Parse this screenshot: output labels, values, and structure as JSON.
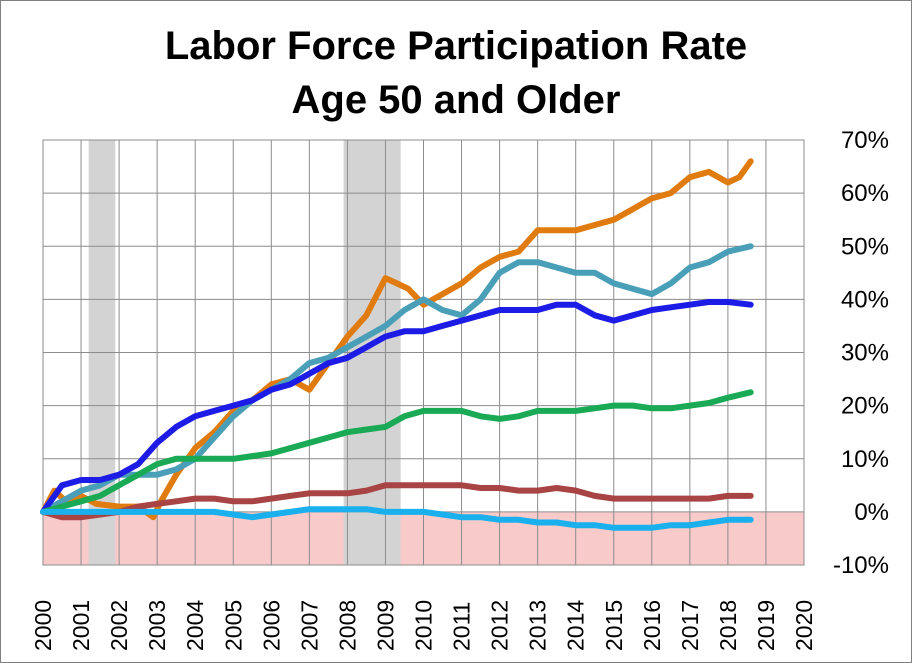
{
  "chart_data": {
    "type": "line",
    "title": "Labor Force Participation Rate",
    "subtitle": "Age 50 and Older",
    "xlabel": "",
    "ylabel": "",
    "xlim": [
      2000,
      2020
    ],
    "ylim": [
      -10,
      70
    ],
    "x_ticks": [
      "2000",
      "2001",
      "2002",
      "2003",
      "2004",
      "2005",
      "2006",
      "2007",
      "2008",
      "2009",
      "2010",
      "2011",
      "2012",
      "2013",
      "2014",
      "2015",
      "2016",
      "2017",
      "2018",
      "2019",
      "2020"
    ],
    "y_ticks": [
      "-10%",
      "0%",
      "10%",
      "20%",
      "30%",
      "40%",
      "50%",
      "60%",
      "70%"
    ],
    "y_tick_values": [
      -10,
      0,
      10,
      20,
      30,
      40,
      50,
      60,
      70
    ],
    "grid": true,
    "y_axis_side": "right",
    "negative_region_color": "#f9caca",
    "recessions": [
      {
        "start": 2001.2,
        "end": 2001.9
      },
      {
        "start": 2007.9,
        "end": 2009.4
      }
    ],
    "recession_color": "#d3d3d3",
    "series": [
      {
        "color": "#e07b10",
        "points": [
          [
            2000,
            0
          ],
          [
            2000.3,
            4
          ],
          [
            2000.6,
            2
          ],
          [
            2001,
            3
          ],
          [
            2001.4,
            1.5
          ],
          [
            2002,
            1
          ],
          [
            2002.5,
            1
          ],
          [
            2002.9,
            -1
          ],
          [
            2003.1,
            2
          ],
          [
            2003.5,
            7
          ],
          [
            2004,
            12
          ],
          [
            2004.5,
            15
          ],
          [
            2005,
            19
          ],
          [
            2005.5,
            21
          ],
          [
            2006,
            24
          ],
          [
            2006.5,
            25
          ],
          [
            2007,
            23
          ],
          [
            2007.5,
            28
          ],
          [
            2008,
            33
          ],
          [
            2008.5,
            37
          ],
          [
            2009,
            44
          ],
          [
            2009.3,
            43
          ],
          [
            2009.6,
            42
          ],
          [
            2010,
            39
          ],
          [
            2010.5,
            41
          ],
          [
            2011,
            43
          ],
          [
            2011.5,
            46
          ],
          [
            2012,
            48
          ],
          [
            2012.5,
            49
          ],
          [
            2013,
            53
          ],
          [
            2013.5,
            53
          ],
          [
            2014,
            53
          ],
          [
            2014.5,
            54
          ],
          [
            2015,
            55
          ],
          [
            2015.5,
            57
          ],
          [
            2016,
            59
          ],
          [
            2016.5,
            60
          ],
          [
            2017,
            63
          ],
          [
            2017.5,
            64
          ],
          [
            2018,
            62
          ],
          [
            2018.3,
            63
          ],
          [
            2018.6,
            66
          ]
        ]
      },
      {
        "color": "#4a9fb8",
        "points": [
          [
            2000,
            0
          ],
          [
            2000.5,
            2
          ],
          [
            2001,
            4
          ],
          [
            2001.5,
            5
          ],
          [
            2002,
            7
          ],
          [
            2002.5,
            7
          ],
          [
            2003,
            7
          ],
          [
            2003.5,
            8
          ],
          [
            2004,
            10
          ],
          [
            2004.5,
            14
          ],
          [
            2005,
            18
          ],
          [
            2005.5,
            21
          ],
          [
            2006,
            23
          ],
          [
            2006.5,
            25
          ],
          [
            2007,
            28
          ],
          [
            2007.5,
            29
          ],
          [
            2008,
            31
          ],
          [
            2008.5,
            33
          ],
          [
            2009,
            35
          ],
          [
            2009.5,
            38
          ],
          [
            2010,
            40
          ],
          [
            2010.5,
            38
          ],
          [
            2011,
            37
          ],
          [
            2011.5,
            40
          ],
          [
            2012,
            45
          ],
          [
            2012.5,
            47
          ],
          [
            2013,
            47
          ],
          [
            2013.5,
            46
          ],
          [
            2014,
            45
          ],
          [
            2014.5,
            45
          ],
          [
            2015,
            43
          ],
          [
            2015.5,
            42
          ],
          [
            2016,
            41
          ],
          [
            2016.5,
            43
          ],
          [
            2017,
            46
          ],
          [
            2017.5,
            47
          ],
          [
            2018,
            49
          ],
          [
            2018.6,
            50
          ]
        ]
      },
      {
        "color": "#1c1ce6",
        "points": [
          [
            2000,
            0
          ],
          [
            2000.5,
            5
          ],
          [
            2001,
            6
          ],
          [
            2001.5,
            6
          ],
          [
            2002,
            7
          ],
          [
            2002.5,
            9
          ],
          [
            2003,
            13
          ],
          [
            2003.5,
            16
          ],
          [
            2004,
            18
          ],
          [
            2004.5,
            19
          ],
          [
            2005,
            20
          ],
          [
            2005.5,
            21
          ],
          [
            2006,
            23
          ],
          [
            2006.5,
            24
          ],
          [
            2007,
            26
          ],
          [
            2007.5,
            28
          ],
          [
            2008,
            29
          ],
          [
            2008.5,
            31
          ],
          [
            2009,
            33
          ],
          [
            2009.5,
            34
          ],
          [
            2010,
            34
          ],
          [
            2010.5,
            35
          ],
          [
            2011,
            36
          ],
          [
            2011.5,
            37
          ],
          [
            2012,
            38
          ],
          [
            2012.5,
            38
          ],
          [
            2013,
            38
          ],
          [
            2013.5,
            39
          ],
          [
            2014,
            39
          ],
          [
            2014.5,
            37
          ],
          [
            2015,
            36
          ],
          [
            2015.5,
            37
          ],
          [
            2016,
            38
          ],
          [
            2016.5,
            38.5
          ],
          [
            2017,
            39
          ],
          [
            2017.5,
            39.5
          ],
          [
            2018,
            39.5
          ],
          [
            2018.6,
            39
          ]
        ]
      },
      {
        "color": "#1aaa55",
        "points": [
          [
            2000,
            0
          ],
          [
            2000.5,
            1
          ],
          [
            2001,
            2
          ],
          [
            2001.5,
            3
          ],
          [
            2002,
            5
          ],
          [
            2002.5,
            7
          ],
          [
            2003,
            9
          ],
          [
            2003.5,
            10
          ],
          [
            2004,
            10
          ],
          [
            2004.5,
            10
          ],
          [
            2005,
            10
          ],
          [
            2005.5,
            10.5
          ],
          [
            2006,
            11
          ],
          [
            2006.5,
            12
          ],
          [
            2007,
            13
          ],
          [
            2007.5,
            14
          ],
          [
            2008,
            15
          ],
          [
            2008.5,
            15.5
          ],
          [
            2009,
            16
          ],
          [
            2009.5,
            18
          ],
          [
            2010,
            19
          ],
          [
            2010.5,
            19
          ],
          [
            2011,
            19
          ],
          [
            2011.5,
            18
          ],
          [
            2012,
            17.5
          ],
          [
            2012.5,
            18
          ],
          [
            2013,
            19
          ],
          [
            2013.5,
            19
          ],
          [
            2014,
            19
          ],
          [
            2014.5,
            19.5
          ],
          [
            2015,
            20
          ],
          [
            2015.5,
            20
          ],
          [
            2016,
            19.5
          ],
          [
            2016.5,
            19.5
          ],
          [
            2017,
            20
          ],
          [
            2017.5,
            20.5
          ],
          [
            2018,
            21.5
          ],
          [
            2018.6,
            22.5
          ]
        ]
      },
      {
        "color": "#a84444",
        "points": [
          [
            2000,
            0
          ],
          [
            2000.5,
            -1
          ],
          [
            2001,
            -1
          ],
          [
            2001.5,
            -0.5
          ],
          [
            2002,
            0
          ],
          [
            2002.5,
            1
          ],
          [
            2003,
            1.5
          ],
          [
            2003.5,
            2
          ],
          [
            2004,
            2.5
          ],
          [
            2004.5,
            2.5
          ],
          [
            2005,
            2
          ],
          [
            2005.5,
            2
          ],
          [
            2006,
            2.5
          ],
          [
            2006.5,
            3
          ],
          [
            2007,
            3.5
          ],
          [
            2007.5,
            3.5
          ],
          [
            2008,
            3.5
          ],
          [
            2008.5,
            4
          ],
          [
            2009,
            5
          ],
          [
            2009.5,
            5
          ],
          [
            2010,
            5
          ],
          [
            2010.5,
            5
          ],
          [
            2011,
            5
          ],
          [
            2011.5,
            4.5
          ],
          [
            2012,
            4.5
          ],
          [
            2012.5,
            4
          ],
          [
            2013,
            4
          ],
          [
            2013.5,
            4.5
          ],
          [
            2014,
            4
          ],
          [
            2014.5,
            3
          ],
          [
            2015,
            2.5
          ],
          [
            2015.5,
            2.5
          ],
          [
            2016,
            2.5
          ],
          [
            2016.5,
            2.5
          ],
          [
            2017,
            2.5
          ],
          [
            2017.5,
            2.5
          ],
          [
            2018,
            3
          ],
          [
            2018.6,
            3
          ]
        ]
      },
      {
        "color": "#1ab0ee",
        "points": [
          [
            2000,
            0
          ],
          [
            2000.5,
            0
          ],
          [
            2001,
            0
          ],
          [
            2001.5,
            0
          ],
          [
            2002,
            0
          ],
          [
            2002.5,
            0
          ],
          [
            2003,
            0
          ],
          [
            2003.5,
            0
          ],
          [
            2004,
            0
          ],
          [
            2004.5,
            0
          ],
          [
            2005,
            -0.5
          ],
          [
            2005.5,
            -1
          ],
          [
            2006,
            -0.5
          ],
          [
            2006.5,
            0
          ],
          [
            2007,
            0.5
          ],
          [
            2007.5,
            0.5
          ],
          [
            2008,
            0.5
          ],
          [
            2008.5,
            0.5
          ],
          [
            2009,
            0
          ],
          [
            2009.5,
            0
          ],
          [
            2010,
            0
          ],
          [
            2010.5,
            -0.5
          ],
          [
            2011,
            -1
          ],
          [
            2011.5,
            -1
          ],
          [
            2012,
            -1.5
          ],
          [
            2012.5,
            -1.5
          ],
          [
            2013,
            -2
          ],
          [
            2013.5,
            -2
          ],
          [
            2014,
            -2.5
          ],
          [
            2014.5,
            -2.5
          ],
          [
            2015,
            -3
          ],
          [
            2015.5,
            -3
          ],
          [
            2016,
            -3
          ],
          [
            2016.5,
            -2.5
          ],
          [
            2017,
            -2.5
          ],
          [
            2017.5,
            -2
          ],
          [
            2018,
            -1.5
          ],
          [
            2018.6,
            -1.5
          ]
        ]
      }
    ]
  }
}
